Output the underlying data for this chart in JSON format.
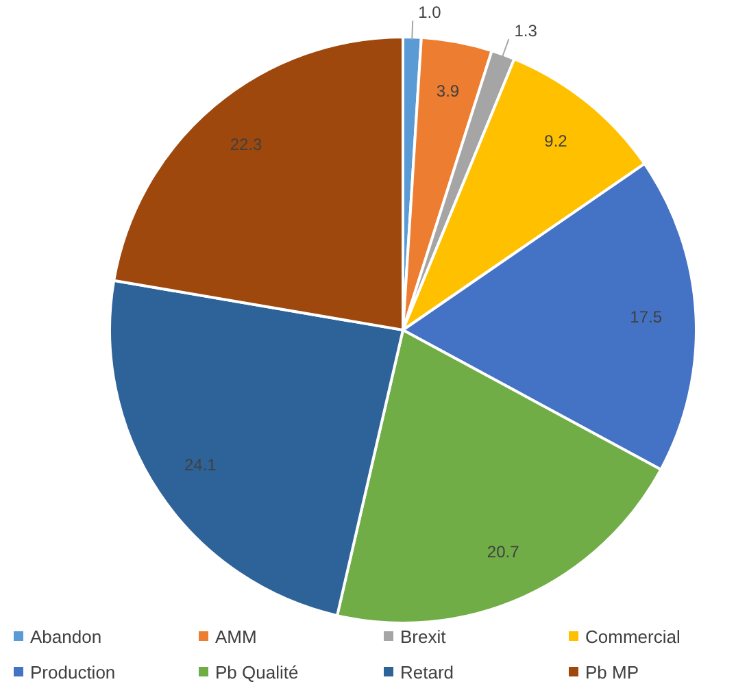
{
  "chart_data": {
    "type": "pie",
    "categories": [
      "Abandon",
      "AMM",
      "Brexit",
      "Commercial",
      "Production",
      "Pb Qualité",
      "Retard",
      "Pb MP"
    ],
    "values": [
      1.0,
      3.9,
      1.3,
      9.2,
      17.5,
      20.7,
      24.1,
      22.3
    ],
    "colors": [
      "#5b9bd5",
      "#ed7d31",
      "#a5a5a5",
      "#ffc000",
      "#4472c4",
      "#70ad47",
      "#2e6399",
      "#9e480e"
    ],
    "value_labels": [
      "1.0",
      "3.9",
      "1.3",
      "9.2",
      "17.5",
      "20.7",
      "24.1",
      "22.3"
    ],
    "legend": "bottom"
  }
}
